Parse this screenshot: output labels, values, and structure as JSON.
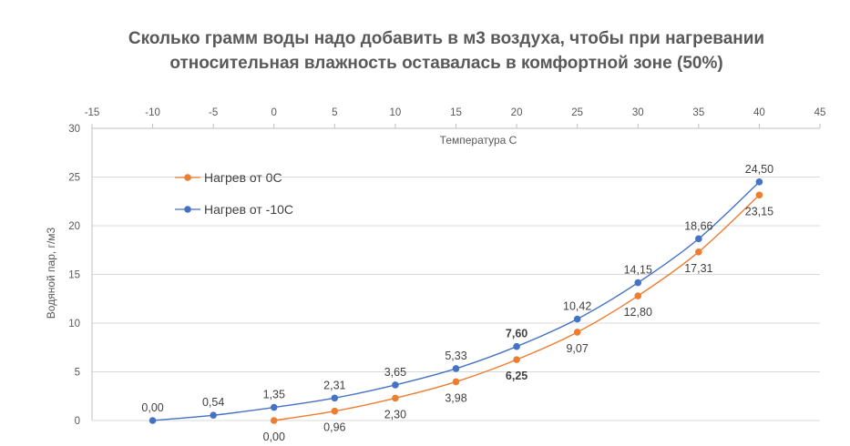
{
  "chart_data": {
    "type": "line",
    "title_lines": [
      "Сколько грамм воды надо добавить в м3 воздуха, чтобы при нагревании",
      "относительная влажность оставалась в комфортной зоне (50%)"
    ],
    "xlabel": "Температура С",
    "ylabel": "Водяной пар, г/м3",
    "xlim": [
      -15,
      45
    ],
    "ylim": [
      0,
      30
    ],
    "x_ticks": [
      "-15",
      "-10",
      "-5",
      "0",
      "5",
      "10",
      "15",
      "20",
      "25",
      "30",
      "35",
      "40",
      "45"
    ],
    "y_ticks": [
      "0",
      "5",
      "10",
      "15",
      "20",
      "25",
      "30"
    ],
    "grid": true,
    "x_axis_position": "top",
    "legend_position": "top-left",
    "series": [
      {
        "name": "Нагрев от 0С",
        "color": "#ED7D31",
        "label_placement": "below",
        "x": [
          0,
          5,
          10,
          15,
          20,
          25,
          30,
          35,
          40
        ],
        "y": [
          0.0,
          0.96,
          2.3,
          3.98,
          6.25,
          9.07,
          12.8,
          17.31,
          23.15
        ],
        "labels": [
          "0,00",
          "0,96",
          "2,30",
          "3,98",
          "6,25",
          "9,07",
          "12,80",
          "17,31",
          "23,15"
        ]
      },
      {
        "name": "Нагрев от -10С",
        "color": "#4472C4",
        "label_placement": "above",
        "x": [
          -10,
          -5,
          0,
          5,
          10,
          15,
          20,
          25,
          30,
          35,
          40
        ],
        "y": [
          0.0,
          0.54,
          1.35,
          2.31,
          3.65,
          5.33,
          7.6,
          10.42,
          14.15,
          18.66,
          24.5
        ],
        "labels": [
          "0,00",
          "0,54",
          "1,35",
          "2,31",
          "3,65",
          "5,33",
          "7,60",
          "10,42",
          "14,15",
          "18,66",
          "24,50"
        ]
      }
    ]
  }
}
